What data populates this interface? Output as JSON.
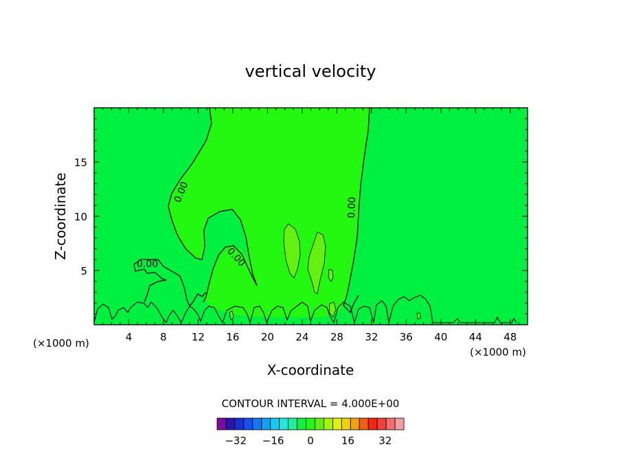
{
  "chart_data": {
    "type": "contour",
    "title": "vertical velocity",
    "xlabel": "X-coordinate",
    "ylabel": "Z-coordinate",
    "x_unit_left": "(×1000 m)",
    "x_unit_right": "(×1000 m)",
    "xlim": [
      0,
      50
    ],
    "ylim": [
      0,
      20
    ],
    "x_ticks": [
      4,
      8,
      12,
      16,
      20,
      24,
      28,
      32,
      36,
      40,
      44,
      48
    ],
    "y_ticks": [
      5,
      10,
      15
    ],
    "contour_labels": [
      "0.00",
      "0.00",
      "0.00",
      "0.00"
    ],
    "contour_interval_text": "CONTOUR INTERVAL = 4.000E+00",
    "colorbar": {
      "ticks": [
        -32,
        -16,
        0,
        16,
        32
      ],
      "tick_labels": [
        "−32",
        "−16",
        "0",
        "16",
        "32"
      ],
      "range": [
        -40,
        40
      ],
      "colors": [
        "#7a0ea0",
        "#2a14a8",
        "#1a2fd0",
        "#1452ee",
        "#1478f0",
        "#14a0f0",
        "#18c8f0",
        "#22e8e0",
        "#1ef0a0",
        "#12f040",
        "#22f814",
        "#60f010",
        "#a8f010",
        "#e0f010",
        "#f0d010",
        "#f0a010",
        "#f06010",
        "#f02810",
        "#f04040",
        "#f07070",
        "#f0a0a0"
      ]
    },
    "field_colors": {
      "background_negative_small": "#00f040",
      "positive_small": "#22f810",
      "positive_medium": "#66f010"
    }
  }
}
